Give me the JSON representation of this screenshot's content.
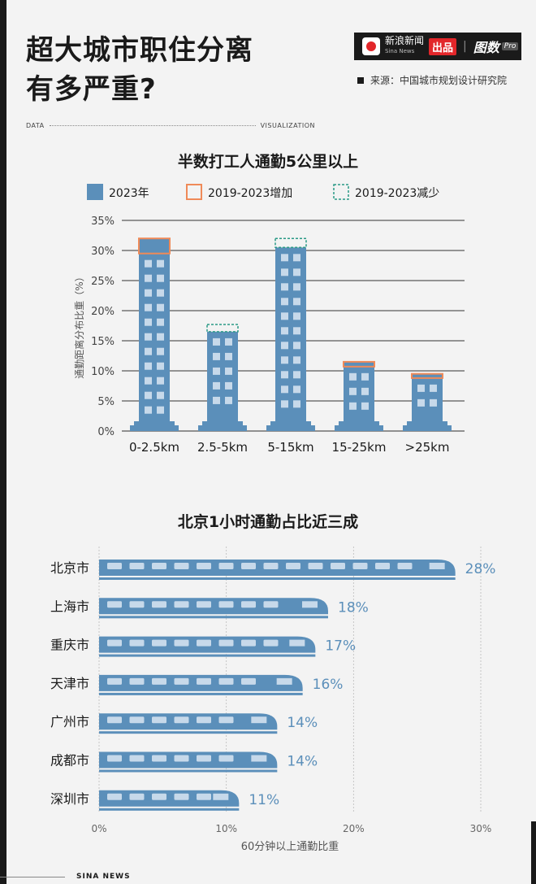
{
  "header": {
    "title_line1": "超大城市职住分离",
    "title_line2": "有多严重?",
    "brand": {
      "name": "新浪新闻",
      "name_en": "Sina News",
      "badge": "出品",
      "product": "图数",
      "product_suffix": "Pro"
    },
    "source": "来源：中国城市规划设计研究院",
    "tag_left": "DATA",
    "tag_right": "VISUALIZATION"
  },
  "footer": {
    "text": "SINA NEWS"
  },
  "colors": {
    "bar": "#5b8fba",
    "increase": "#ef8a58",
    "decrease": "#2a9a86",
    "window": "#c7d9ea",
    "text": "#1a1a1a",
    "value": "#5b8fba"
  },
  "chart_data": [
    {
      "type": "bar",
      "title": "半数打工人通勤5公里以上",
      "ylabel": "通勤距离分布比重（%）",
      "categories": [
        "0-2.5km",
        "2.5-5km",
        "5-15km",
        "15-25km",
        ">25km"
      ],
      "series": [
        {
          "name": "2023年",
          "values": [
            29.5,
            16.5,
            30.5,
            10.7,
            8.8
          ]
        },
        {
          "name": "2019-2023增加",
          "values": [
            2.5,
            0,
            0,
            0.8,
            0.7
          ]
        },
        {
          "name": "2019-2023减少",
          "values": [
            0,
            1.2,
            1.5,
            0,
            0
          ]
        }
      ],
      "ylim": [
        0,
        35
      ],
      "yticks": [
        "0%",
        "5%",
        "10%",
        "15%",
        "20%",
        "25%",
        "30%",
        "35%"
      ],
      "grid": true,
      "legend": "top"
    },
    {
      "type": "bar",
      "orientation": "horizontal",
      "title": "北京1小时通勤占比近三成",
      "xlabel": "60分钟以上通勤比重",
      "categories": [
        "北京市",
        "上海市",
        "重庆市",
        "天津市",
        "广州市",
        "成都市",
        "深圳市"
      ],
      "values": [
        28,
        18,
        17,
        16,
        14,
        14,
        11
      ],
      "value_labels": [
        "28%",
        "18%",
        "17%",
        "16%",
        "14%",
        "14%",
        "11%"
      ],
      "xlim": [
        0,
        30
      ],
      "xticks": [
        "0%",
        "10%",
        "20%",
        "30%"
      ],
      "grid": true
    }
  ]
}
